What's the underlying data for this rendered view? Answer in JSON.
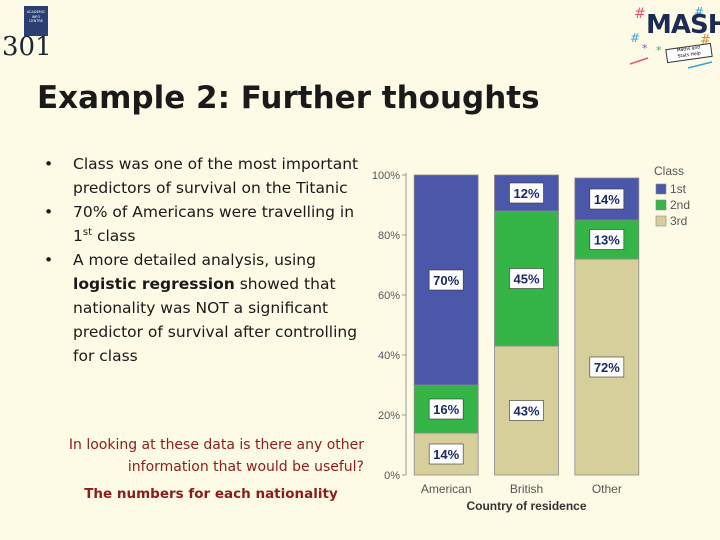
{
  "header": {
    "left_logo": {
      "badge_lines": [
        "ACADEMIC",
        "INFO",
        "CENTRE"
      ],
      "number": "301"
    },
    "right_logo": {
      "word": "MASH",
      "tagline": [
        "Maths and",
        "Stats Help"
      ]
    },
    "title": "Example 2: Further thoughts"
  },
  "bullets": [
    {
      "marker": "•",
      "text": "Class was one of the most important predictors of survival on the Titanic"
    },
    {
      "marker": "•",
      "text_before": "70% of Americans were travelling in 1",
      "superscript": "st",
      "text_after": " class"
    },
    {
      "marker": "•",
      "text_before": "A more detailed analysis, using ",
      "bold": "logistic regression",
      "text_after": " showed that nationality was NOT a significant predictor of survival after controlling for class"
    }
  ],
  "question": "In looking at these data is there any other information that would be useful?",
  "answer": "The numbers for each nationality",
  "colors": {
    "first": "#4b57a8",
    "second": "#35b548",
    "third": "#d6cf9c",
    "highlight": "#8c1b1b"
  },
  "chart_data": {
    "type": "bar",
    "stacked": true,
    "categories": [
      "American",
      "British",
      "Other"
    ],
    "series": [
      {
        "name": "1st",
        "values": [
          70,
          12,
          14
        ],
        "labels": [
          "70%",
          "12%",
          "14%"
        ],
        "color": "#4b57a8"
      },
      {
        "name": "2nd",
        "values": [
          16,
          45,
          13
        ],
        "labels": [
          "16%",
          "45%",
          "13%"
        ],
        "color": "#35b548"
      },
      {
        "name": "3rd",
        "values": [
          14,
          43,
          72
        ],
        "labels": [
          "14%",
          "43%",
          "72%"
        ],
        "color": "#d6cf9c"
      }
    ],
    "xlabel": "Country of residence",
    "ylabel": "",
    "ylim": [
      0,
      100
    ],
    "yticks": [
      0,
      20,
      40,
      60,
      80,
      100
    ],
    "ytick_labels": [
      "0%",
      "20%",
      "40%",
      "60%",
      "80%",
      "100%"
    ],
    "legend_title": "Class",
    "legend_position": "top-right",
    "grid": false
  }
}
